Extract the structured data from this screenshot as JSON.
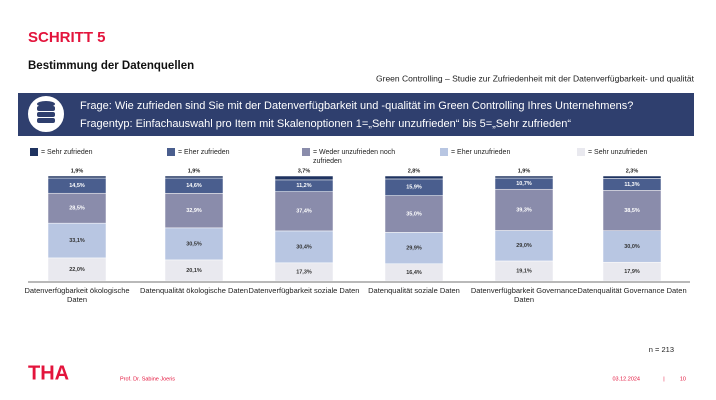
{
  "header": {
    "step": "SCHRITT 5",
    "title": "Bestimmung der Datenquellen",
    "subtitle": "Green Controlling – Studie zur Zufriedenheit mit der Datenverfügbarkeit- und qualität"
  },
  "banner": {
    "question": "Frage: Wie zufrieden sind Sie mit der Datenverfügbarkeit und -qualität im Green Controlling Ihres Unternehmens?",
    "type": "Fragentyp: Einfachauswahl pro Item mit Skalenoptionen 1=„Sehr unzufrieden“ bis 5=„Sehr zufrieden“"
  },
  "chart_data": {
    "type": "stacked_bar",
    "ylim": [
      0,
      100
    ],
    "categories": [
      "Datenverfügbarkeit ökologische Daten",
      "Datenqualität ökologische Daten",
      "Datenverfügbarkeit soziale Daten",
      "Datenqualität soziale Daten",
      "Datenverfügbarkeit Governance Daten",
      "Datenqualität Governance Daten"
    ],
    "series": [
      {
        "name": "= Sehr zufrieden",
        "color": "#1f3360",
        "values": [
          1.9,
          1.9,
          3.7,
          2.8,
          1.9,
          2.3
        ],
        "value_labels": [
          "1,9%",
          "1,9%",
          "3,7%",
          "2,8%",
          "1,9%",
          "2,3%"
        ]
      },
      {
        "name": "= Eher zufrieden",
        "color": "#4a5e8e",
        "values": [
          14.5,
          14.6,
          11.2,
          15.9,
          10.7,
          11.3
        ],
        "value_labels": [
          "14,5%",
          "14,6%",
          "11,2%",
          "15,9%",
          "10,7%",
          "11,3%"
        ]
      },
      {
        "name": "= Weder unzufrieden noch zufrieden",
        "color": "#8a8cab",
        "values": [
          28.5,
          32.9,
          37.4,
          35.0,
          39.3,
          38.5
        ],
        "value_labels": [
          "28,5%",
          "32,9%",
          "37,4%",
          "35,0%",
          "39,3%",
          "38,5%"
        ]
      },
      {
        "name": "= Eher unzufrieden",
        "color": "#b8c6e2",
        "values": [
          33.1,
          30.5,
          30.4,
          29.9,
          29.0,
          30.0
        ],
        "value_labels": [
          "33,1%",
          "30,5%",
          "30,4%",
          "29,9%",
          "29,0%",
          "30,0%"
        ]
      },
      {
        "name": "= Sehr unzufrieden",
        "color": "#e9e9ef",
        "values": [
          22.0,
          20.1,
          17.3,
          16.4,
          19.1,
          17.9
        ],
        "value_labels": [
          "22,0%",
          "20,1%",
          "17,3%",
          "16,4%",
          "19,1%",
          "17,9%"
        ]
      }
    ],
    "note": "n = 213"
  },
  "footer": {
    "logo": "THA",
    "author": "Prof. Dr. Sabine Joeris",
    "date": "03.12.2024",
    "separator": "|",
    "page": "10"
  }
}
